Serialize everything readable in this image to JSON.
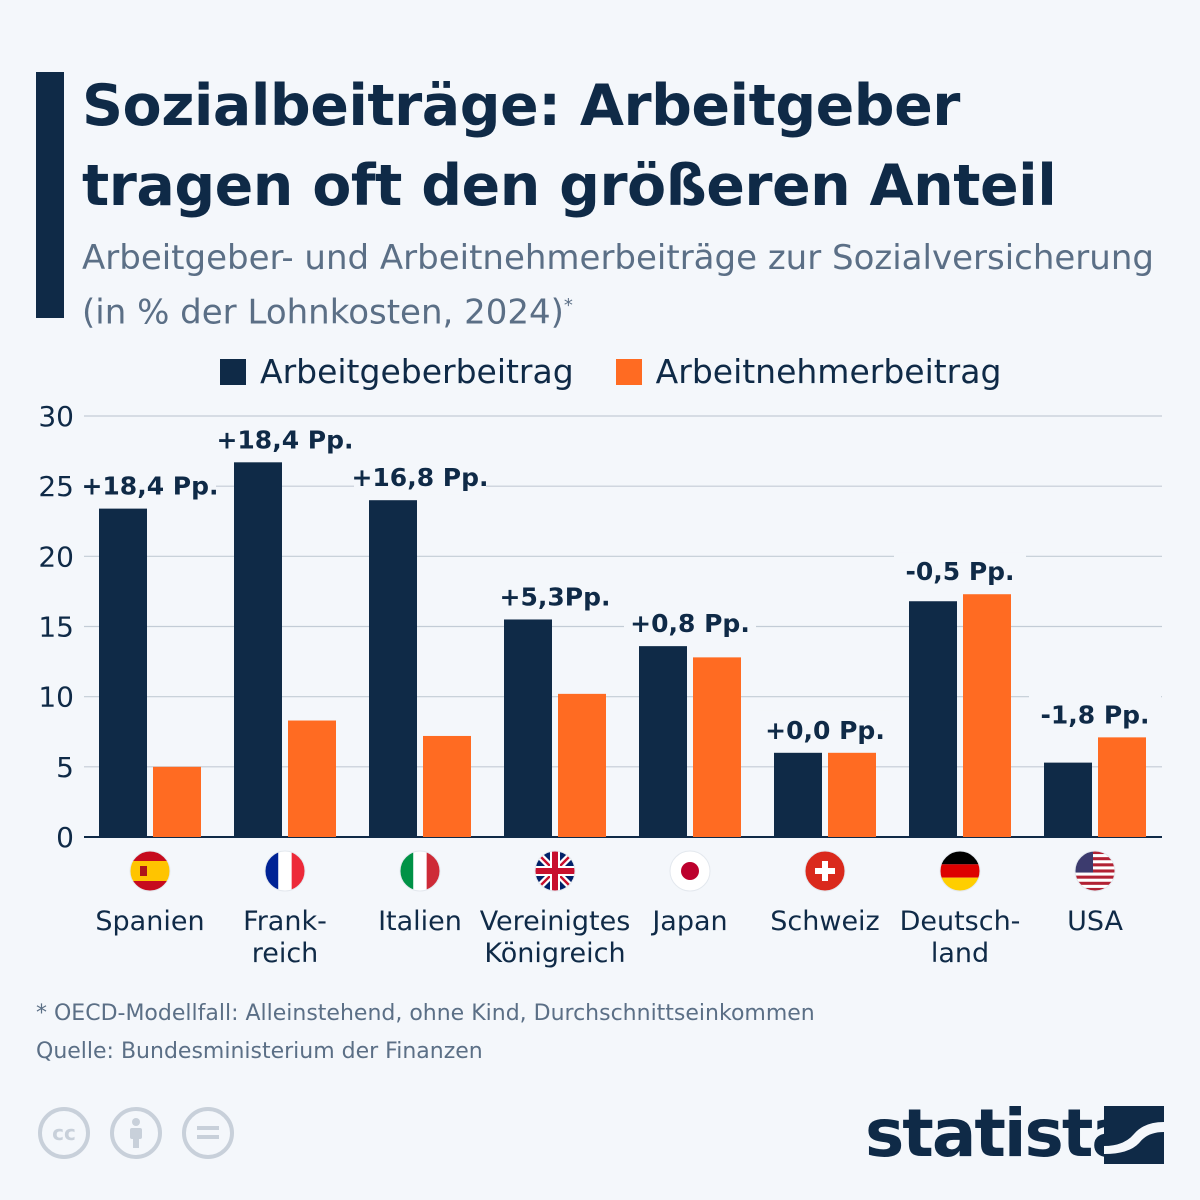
{
  "title": "Sozialbeiträge: Arbeitgeber tragen oft den größeren Anteil",
  "subtitle": "Arbeitgeber- und Arbeitnehmerbeiträge zur Sozialversicherung (in % der Lohnkosten, 2024)",
  "subtitle_mark": "*",
  "footnote": "* OECD-Modellfall: Alleinstehend, ohne Kind, Durchschnittseinkommen",
  "source": "Quelle: Bundesministerium der Finanzen",
  "logo": "statista",
  "license_icons": [
    "cc-icon",
    "attribution-icon",
    "no-derivatives-icon"
  ],
  "colors": {
    "employer": "#0f2a47",
    "employee": "#ff6b22",
    "background": "#f4f7fb"
  },
  "chart_data": {
    "type": "bar",
    "categories": [
      "Spanien",
      "Frank-\nreich",
      "Italien",
      "Vereinigtes\nKönigreich",
      "Japan",
      "Schweiz",
      "Deutsch-\nland",
      "USA"
    ],
    "flags": [
      "es",
      "fr",
      "it",
      "gb",
      "jp",
      "ch",
      "de",
      "us"
    ],
    "series": [
      {
        "name": "Arbeitgeberbeitrag",
        "values": [
          23.4,
          26.7,
          24.0,
          15.5,
          13.6,
          6.0,
          16.8,
          5.3
        ]
      },
      {
        "name": "Arbeitnehmerbeitrag",
        "values": [
          5.0,
          8.3,
          7.2,
          10.2,
          12.8,
          6.0,
          17.3,
          7.1
        ]
      }
    ],
    "annotations": [
      "+18,4 Pp.",
      "+18,4 Pp.",
      "+16,8 Pp.",
      "+5,3Pp.",
      "+0,8 Pp.",
      "+0,0 Pp.",
      "-0,5 Pp.",
      "-1,8 Pp."
    ],
    "yticks": [
      0,
      5,
      10,
      15,
      20,
      25,
      30
    ],
    "ylim": [
      0,
      30
    ],
    "grid": true,
    "legend": "top"
  }
}
